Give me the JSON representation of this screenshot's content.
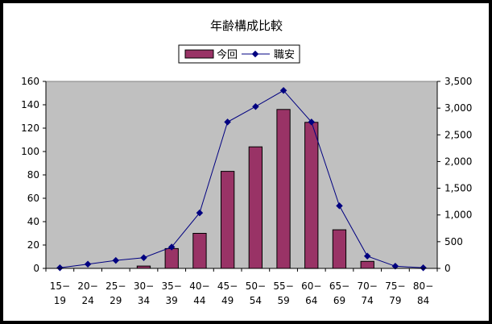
{
  "chart_data": {
    "type": "bar",
    "title": "年齢構成比較",
    "categories": [
      [
        "15−",
        "19"
      ],
      [
        "20−",
        "24"
      ],
      [
        "25−",
        "29"
      ],
      [
        "30−",
        "34"
      ],
      [
        "35−",
        "39"
      ],
      [
        "40−",
        "44"
      ],
      [
        "45−",
        "49"
      ],
      [
        "50−",
        "54"
      ],
      [
        "55−",
        "59"
      ],
      [
        "60−",
        "64"
      ],
      [
        "65−",
        "69"
      ],
      [
        "70−",
        "74"
      ],
      [
        "75−",
        "79"
      ],
      [
        "80−",
        "84"
      ]
    ],
    "series": [
      {
        "name": "今回",
        "type": "bar",
        "axis": "left",
        "color": "#993366",
        "values": [
          0,
          0,
          0,
          2,
          17,
          30,
          83,
          104,
          136,
          125,
          33,
          6,
          0,
          0
        ]
      },
      {
        "name": "職安",
        "type": "line",
        "axis": "right",
        "color": "#000080",
        "values": [
          10,
          80,
          150,
          200,
          400,
          1040,
          2740,
          3030,
          3330,
          2740,
          1170,
          230,
          40,
          10
        ]
      }
    ],
    "y_left": {
      "min": 0,
      "max": 160,
      "ticks": [
        "0",
        "20",
        "40",
        "60",
        "80",
        "100",
        "120",
        "140",
        "160"
      ]
    },
    "y_right": {
      "min": 0,
      "max": 3500,
      "ticks": [
        "0",
        "500",
        "1,000",
        "1,500",
        "2,000",
        "2,500",
        "3,000",
        "3,500"
      ]
    },
    "plot_background": "#c0c0c0",
    "gridlines": false,
    "legend_position": "top-center"
  }
}
